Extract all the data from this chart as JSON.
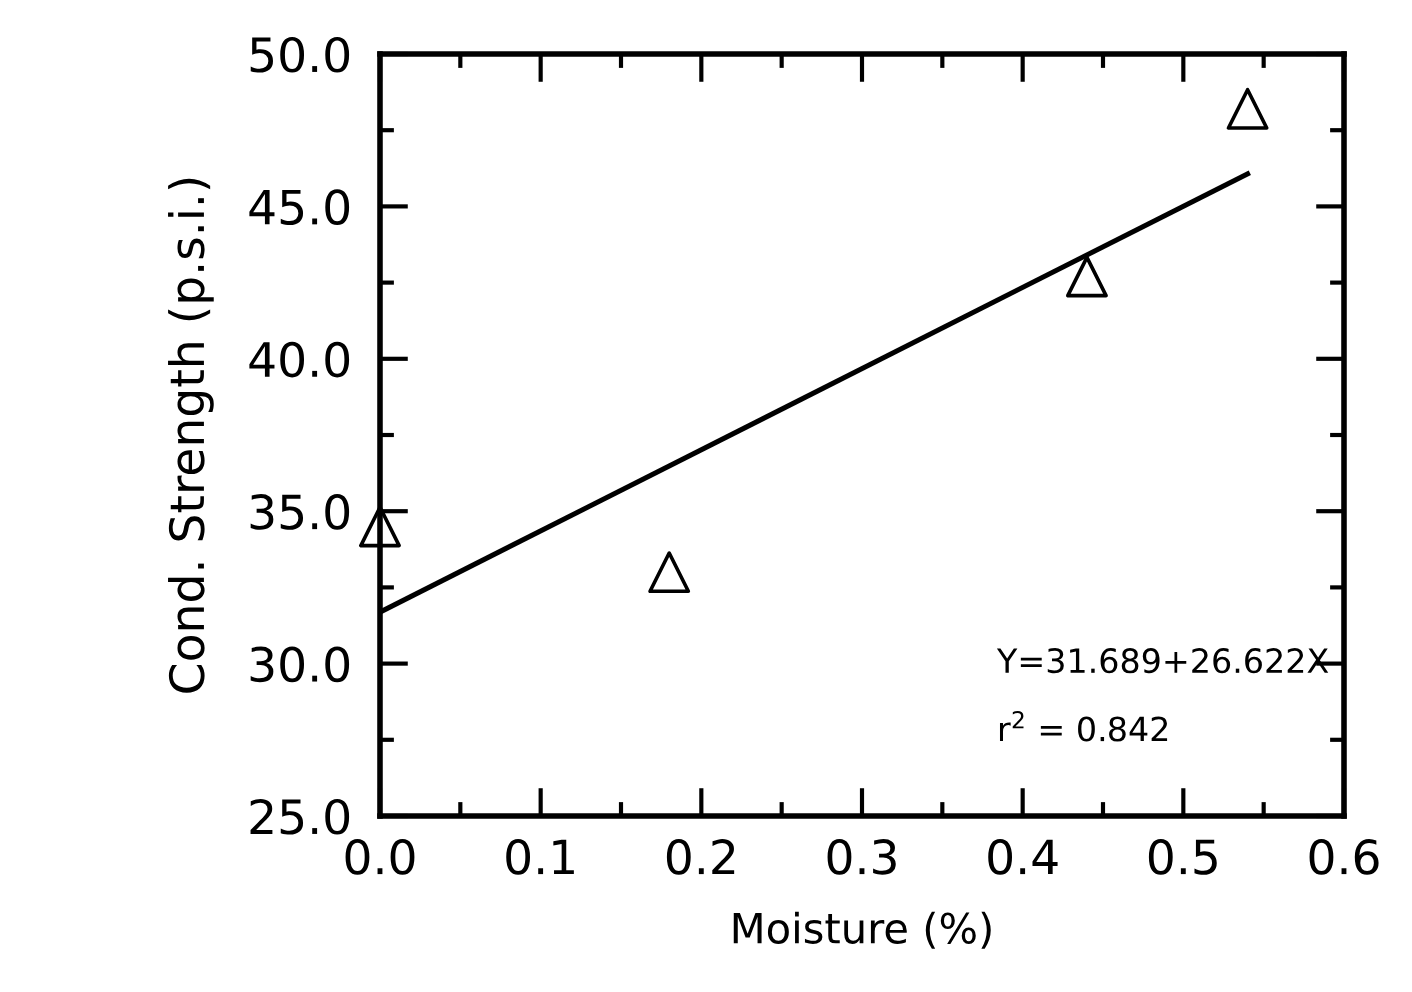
{
  "chart_data": {
    "type": "scatter",
    "xlabel": "Moisture (%)",
    "ylabel": "Cond. Strength (p.s.i.)",
    "xlim": [
      0.0,
      0.6
    ],
    "ylim": [
      25.0,
      50.0
    ],
    "xticks": [
      {
        "value": 0.0,
        "label": "0.0"
      },
      {
        "value": 0.1,
        "label": "0.1"
      },
      {
        "value": 0.2,
        "label": "0.2"
      },
      {
        "value": 0.3,
        "label": "0.3"
      },
      {
        "value": 0.4,
        "label": "0.4"
      },
      {
        "value": 0.5,
        "label": "0.5"
      },
      {
        "value": 0.6,
        "label": "0.6"
      }
    ],
    "yticks": [
      {
        "value": 25,
        "label": "25.0"
      },
      {
        "value": 30,
        "label": "30.0"
      },
      {
        "value": 35,
        "label": "35.0"
      },
      {
        "value": 40,
        "label": "40.0"
      },
      {
        "value": 45,
        "label": "45.0"
      },
      {
        "value": 50,
        "label": "50.0"
      }
    ],
    "grid": false,
    "legend": false,
    "series": [
      {
        "marker": "triangle",
        "color": "#000000",
        "x": [
          0.0,
          0.18,
          0.44,
          0.54
        ],
        "values": [
          34.5,
          33.0,
          42.7,
          48.2
        ]
      },
      {
        "type": "line",
        "color": "#000000",
        "x": [
          0.0,
          0.54
        ],
        "values": [
          31.69,
          46.07
        ]
      }
    ],
    "annotations": [
      "Y=31.689+26.622X",
      "r$^{2}$ = 0.842"
    ]
  }
}
